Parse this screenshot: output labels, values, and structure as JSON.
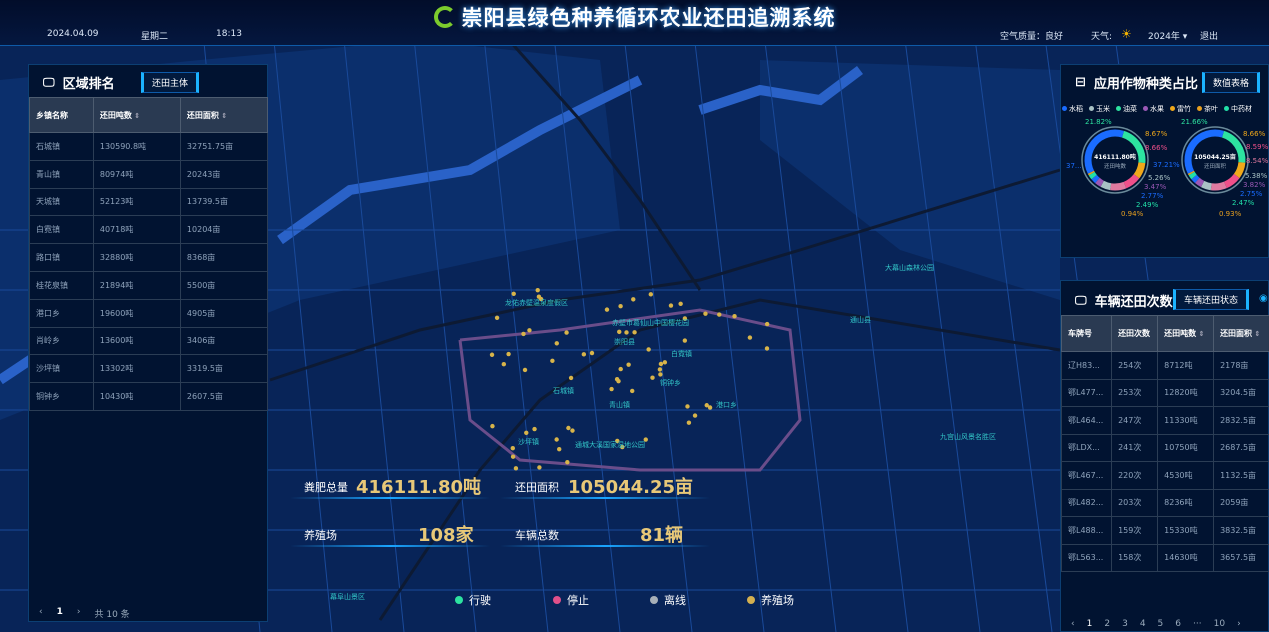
{
  "header": {
    "title": "崇阳县绿色种养循环农业还田追溯系统",
    "date": "2024.04.09",
    "weekday": "星期二",
    "time": "18:13",
    "air_quality": "空气质量：良好",
    "weather_label": "天气:",
    "weather_icon": "sun-icon",
    "year": "2024年",
    "logout": "退出"
  },
  "region_ranking": {
    "title": "区域排名",
    "tab": "还田主体",
    "columns": [
      "乡镇名称",
      "还田吨数",
      "还田面积"
    ],
    "rows": [
      [
        "石城镇",
        "130590.8吨",
        "32751.75亩"
      ],
      [
        "青山镇",
        "80974吨",
        "20243亩"
      ],
      [
        "天城镇",
        "52123吨",
        "13739.5亩"
      ],
      [
        "白霓镇",
        "40718吨",
        "10204亩"
      ],
      [
        "路口镇",
        "32880吨",
        "8368亩"
      ],
      [
        "桂花泉镇",
        "21894吨",
        "5500亩"
      ],
      [
        "港口乡",
        "19600吨",
        "4905亩"
      ],
      [
        "肖岭乡",
        "13600吨",
        "3406亩"
      ],
      [
        "沙坪镇",
        "13302吨",
        "3319.5亩"
      ],
      [
        "铜钟乡",
        "10430吨",
        "2607.5亩"
      ]
    ],
    "pager": {
      "prev": "‹",
      "page": "1",
      "next": "›",
      "total": "共 10 条"
    }
  },
  "crop_ratio": {
    "title": "应用作物种类占比",
    "tab": "数值表格",
    "legend": [
      {
        "name": "水稻",
        "color": "#1a6cff"
      },
      {
        "name": "玉米",
        "color": "#a9c2c4"
      },
      {
        "name": "油菜",
        "color": "#2de3a0"
      },
      {
        "name": "水果",
        "color": "#9b59b6"
      },
      {
        "name": "雷竹",
        "color": "#f0a81a"
      },
      {
        "name": "茶叶",
        "color": "#e8a020"
      },
      {
        "name": "中药材",
        "color": "#22e0a8"
      }
    ],
    "donuts": [
      {
        "value": "416111.80吨",
        "label": "还田吨数",
        "segments": [
          {
            "pct": "21.82%",
            "v": 21.82,
            "color": "#2de3a0"
          },
          {
            "pct": "8.67%",
            "v": 8.67,
            "color": "#f0a81a"
          },
          {
            "pct": "8.66%",
            "v": 8.66,
            "color": "#f0508a"
          },
          {
            "pct": "",
            "v": 8.6,
            "color": "#e07aa0"
          },
          {
            "pct": "5.26%",
            "v": 5.26,
            "color": "#a9c2c4"
          },
          {
            "pct": "3.47%",
            "v": 3.47,
            "color": "#9b59b6"
          },
          {
            "pct": "2.77%",
            "v": 2.77,
            "color": "#1a6cff"
          },
          {
            "pct": "2.49%",
            "v": 2.49,
            "color": "#22e0a8"
          },
          {
            "pct": "0.94%",
            "v": 0.94,
            "color": "#e8a020"
          },
          {
            "pct": "37...",
            "v": 37.21,
            "color": "#1a6cff"
          }
        ]
      },
      {
        "value": "105044.25亩",
        "label": "还田面积",
        "segments": [
          {
            "pct": "21.66%",
            "v": 21.66,
            "color": "#2de3a0"
          },
          {
            "pct": "8.66%",
            "v": 8.66,
            "color": "#f0a81a"
          },
          {
            "pct": "8.59%",
            "v": 8.59,
            "color": "#f0508a"
          },
          {
            "pct": "8.54%",
            "v": 8.54,
            "color": "#e07aa0"
          },
          {
            "pct": "5.38%",
            "v": 5.38,
            "color": "#a9c2c4"
          },
          {
            "pct": "3.82%",
            "v": 3.82,
            "color": "#9b59b6"
          },
          {
            "pct": "2.75%",
            "v": 2.75,
            "color": "#1a6cff"
          },
          {
            "pct": "2.47%",
            "v": 2.47,
            "color": "#22e0a8"
          },
          {
            "pct": "0.93%",
            "v": 0.93,
            "color": "#e8a020"
          },
          {
            "pct": "37.21%",
            "v": 37.21,
            "color": "#1a6cff"
          }
        ]
      }
    ]
  },
  "vehicle": {
    "title": "车辆还田次数",
    "tab": "车辆还田状态",
    "columns": [
      "车牌号",
      "还田次数",
      "还田吨数",
      "还田面积"
    ],
    "rows": [
      [
        "辽H83...",
        "254次",
        "8712吨",
        "2178亩"
      ],
      [
        "鄂L477...",
        "253次",
        "12820吨",
        "3204.5亩"
      ],
      [
        "鄂L464...",
        "247次",
        "11330吨",
        "2832.5亩"
      ],
      [
        "鄂LDX...",
        "241次",
        "10750吨",
        "2687.5亩"
      ],
      [
        "鄂L467...",
        "220次",
        "4530吨",
        "1132.5亩"
      ],
      [
        "鄂L482...",
        "203次",
        "8236吨",
        "2059亩"
      ],
      [
        "鄂L488...",
        "159次",
        "15330吨",
        "3832.5亩"
      ],
      [
        "鄂L563...",
        "158次",
        "14630吨",
        "3657.5亩"
      ]
    ],
    "pager": [
      "‹",
      "1",
      "2",
      "3",
      "4",
      "5",
      "6",
      "···",
      "10",
      "›"
    ]
  },
  "stats": {
    "manure_label": "粪肥总量",
    "manure_value": "416111.80吨",
    "area_label": "还田面积",
    "area_value": "105044.25亩",
    "farm_label": "养殖场",
    "farm_value": "108家",
    "vehicle_label": "车辆总数",
    "vehicle_value": "81辆"
  },
  "map_legend": [
    {
      "name": "行驶",
      "color": "#2de3a0"
    },
    {
      "name": "停止",
      "color": "#e0508a"
    },
    {
      "name": "离线",
      "color": "#a8b0b8"
    },
    {
      "name": "养殖场",
      "color": "#d4b050"
    }
  ],
  "map_labels": [
    "崇阳县",
    "石城镇",
    "白霓镇",
    "青山镇",
    "沙坪镇",
    "港口乡",
    "铜钟乡",
    "通城大溪国家湿地公园",
    "赤壁市葛仙山中国樱花园",
    "龙佑赤壁温泉度假区",
    "大幕山森林公园",
    "九宫山风景名胜区",
    "通山县",
    "幕阜山景区"
  ]
}
